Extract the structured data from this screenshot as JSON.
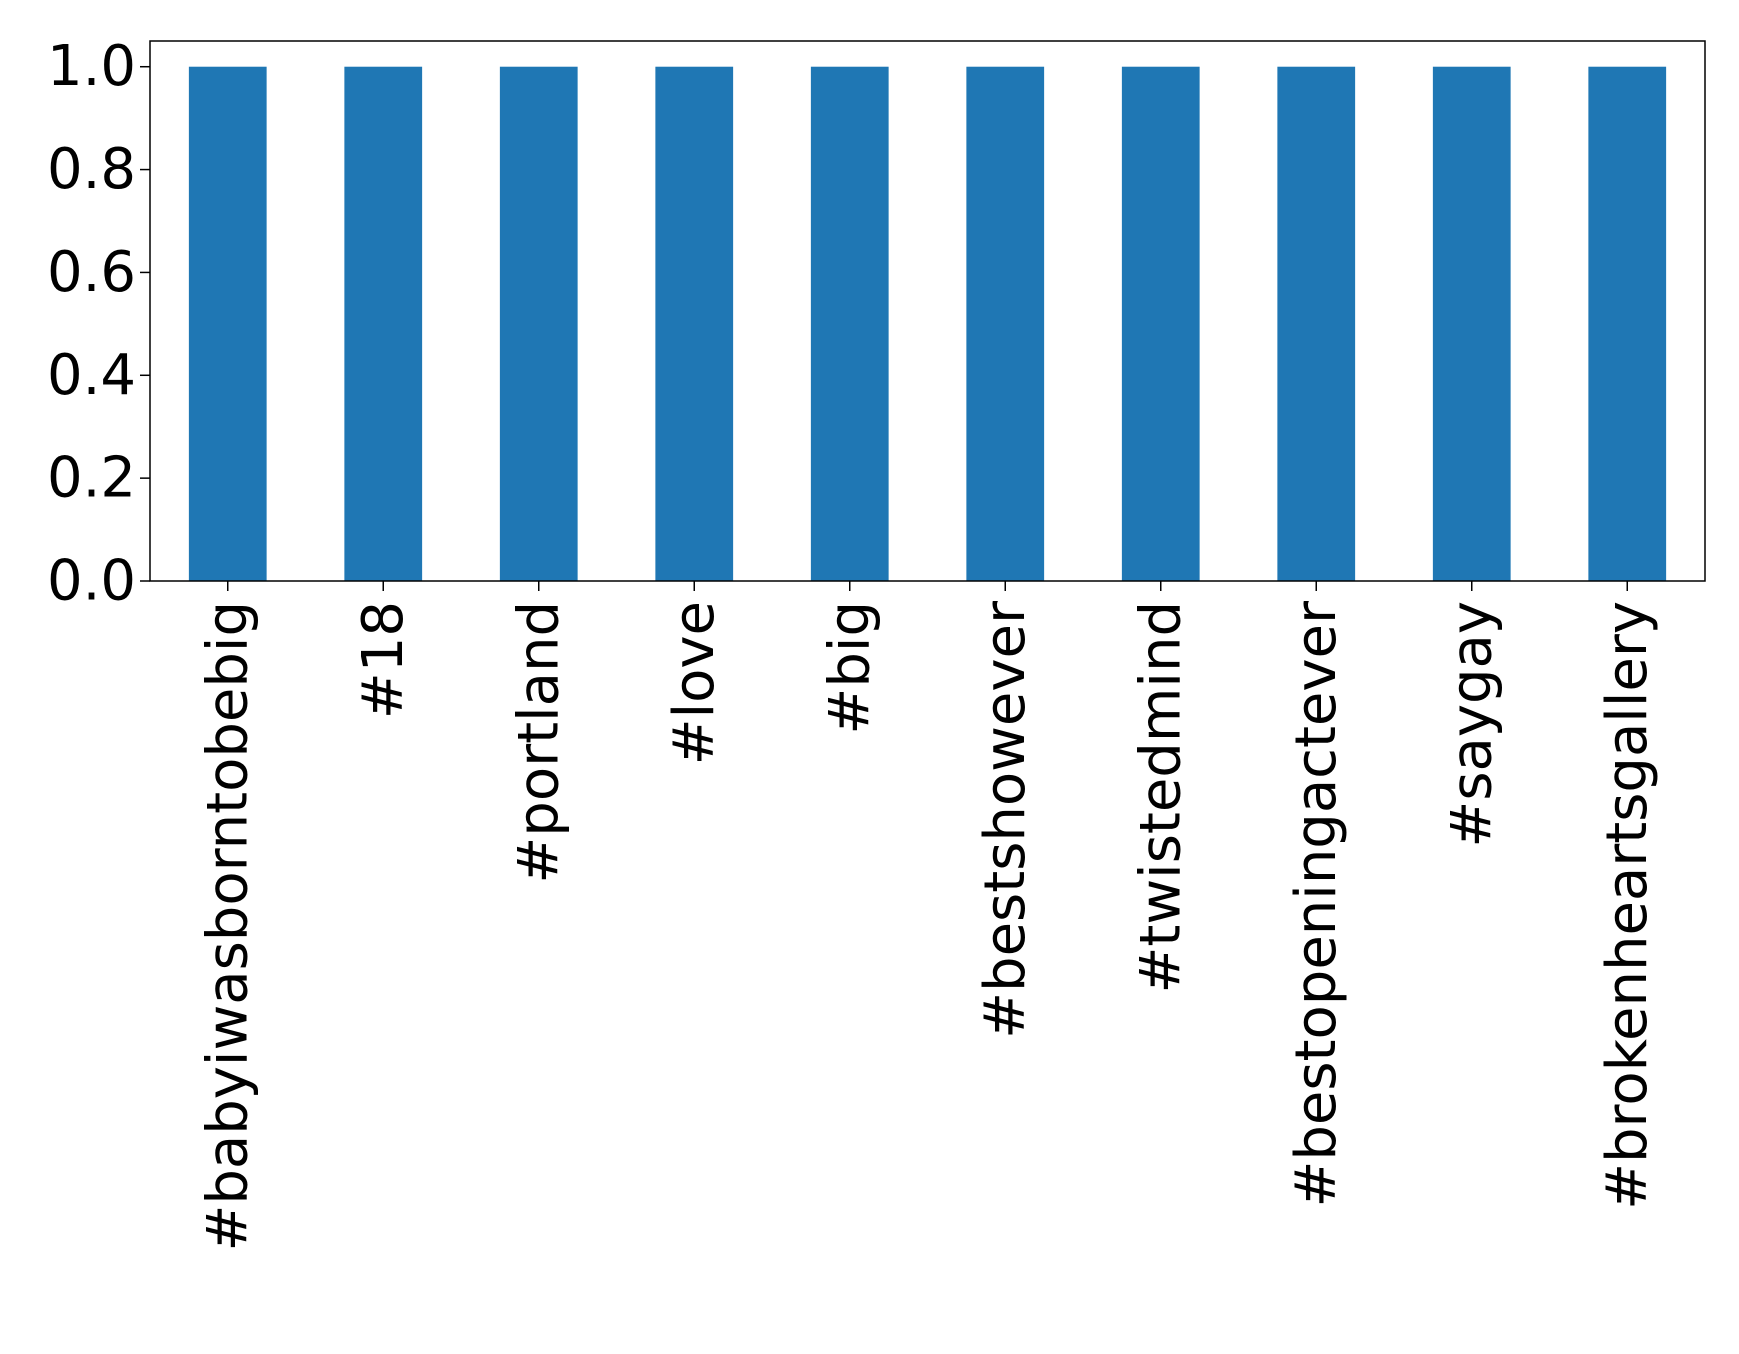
{
  "chart_data": {
    "type": "bar",
    "title": "",
    "xlabel": "",
    "ylabel": "",
    "categories": [
      "#babyiwasborntobebig",
      "#18",
      "#portland",
      "#love",
      "#big",
      "#bestshowever",
      "#twistedmind",
      "#bestopeningactever",
      "#saygay",
      "#brokenheartsgallery"
    ],
    "values": [
      1.0,
      1.0,
      1.0,
      1.0,
      1.0,
      1.0,
      1.0,
      1.0,
      1.0,
      1.0
    ],
    "ylim": [
      0.0,
      1.05
    ],
    "yticks": [
      "0.0",
      "0.2",
      "0.4",
      "0.6",
      "0.8",
      "1.0"
    ],
    "grid": false,
    "legend": "none",
    "colors": {
      "bar": "#1f77b4",
      "axis": "#000000",
      "background": "#ffffff"
    }
  }
}
